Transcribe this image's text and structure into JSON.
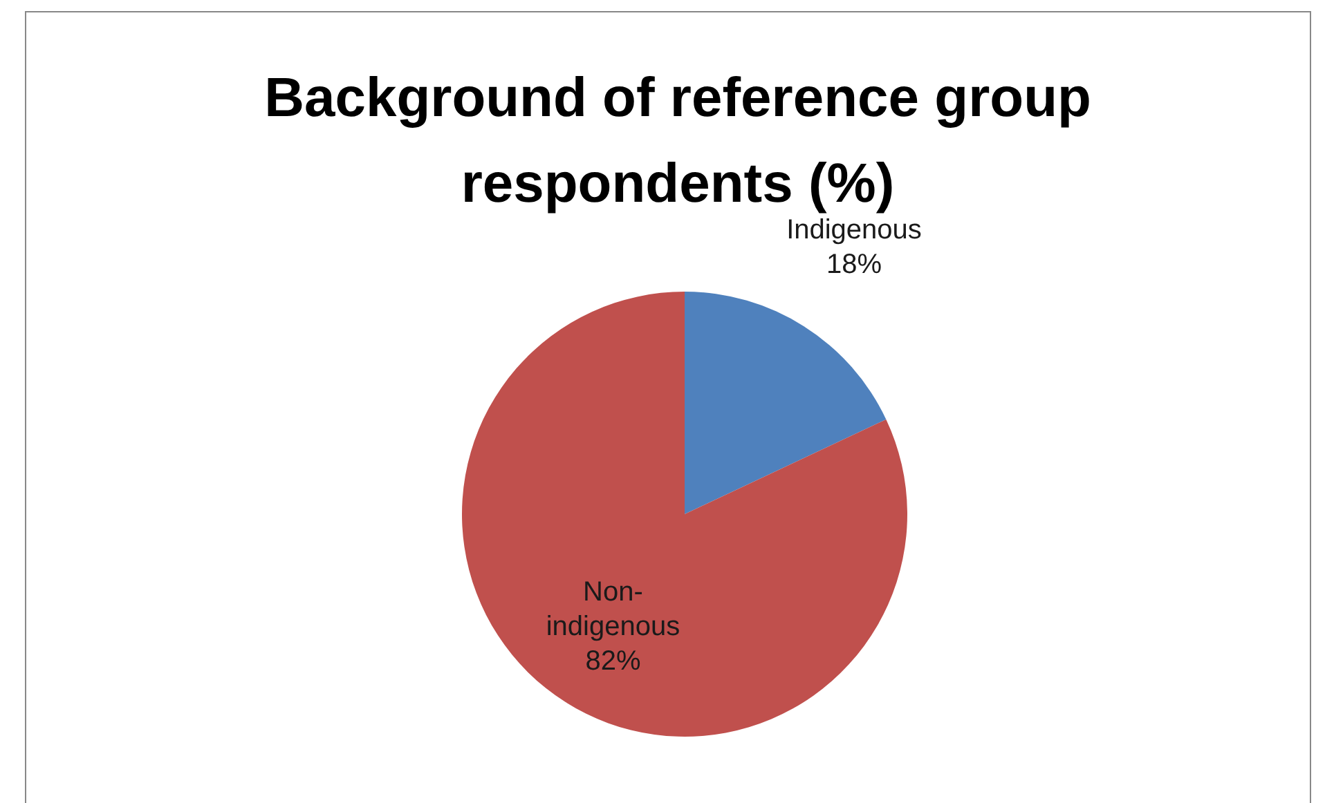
{
  "chart_data": {
    "type": "pie",
    "title": "Background of reference group respondents (%)",
    "categories": [
      "Indigenous",
      "Non-indigenous"
    ],
    "values": [
      18,
      82
    ],
    "colors": [
      "#4f81bd",
      "#c0504d"
    ],
    "value_labels": [
      "18%",
      "82%"
    ]
  }
}
